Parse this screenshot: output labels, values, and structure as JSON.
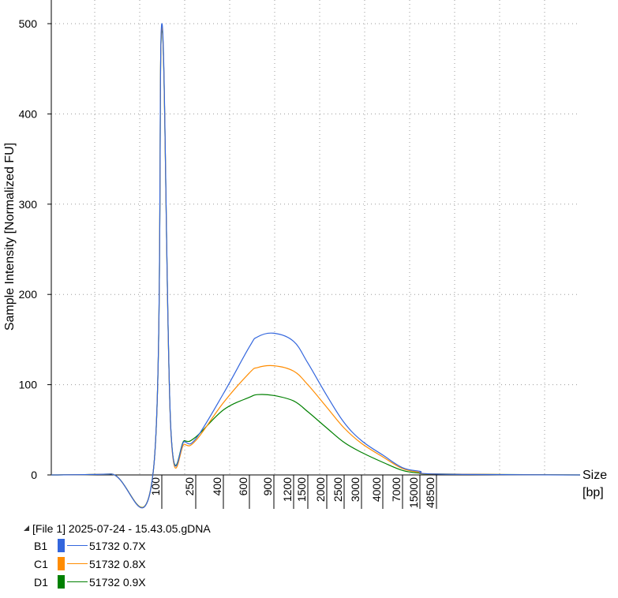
{
  "chart_data": {
    "type": "line",
    "ylabel": "Sample Intensity [Normalized FU]",
    "xlabel": "Size\n[bp]",
    "xlabel_lines": [
      "Size",
      "[bp]"
    ],
    "ylim": [
      0,
      500
    ],
    "yticks": [
      0,
      100,
      200,
      300,
      400,
      500
    ],
    "x_scale": "nonlinear (ladder-calibrated)",
    "xticks": [
      "100",
      "250",
      "400",
      "600",
      "900",
      "1200",
      "1500",
      "2000",
      "2500",
      "3000",
      "4000",
      "7000",
      "15000",
      "48500"
    ],
    "grid": true,
    "series": [
      {
        "name": "51732 0.7X",
        "well": "B1",
        "color": "#3366dd",
        "points": [
          [
            35,
            0
          ],
          [
            70,
            1
          ],
          [
            95,
            4
          ],
          [
            100,
            500
          ],
          [
            140,
            50
          ],
          [
            200,
            37
          ],
          [
            250,
            40
          ],
          [
            400,
            90
          ],
          [
            600,
            142
          ],
          [
            700,
            153
          ],
          [
            900,
            157
          ],
          [
            1200,
            148
          ],
          [
            1500,
            124
          ],
          [
            2000,
            88
          ],
          [
            2500,
            58
          ],
          [
            3000,
            38
          ],
          [
            4000,
            22
          ],
          [
            7000,
            8
          ],
          [
            15000,
            4
          ],
          [
            48500,
            1
          ],
          [
            60000,
            0
          ]
        ]
      },
      {
        "name": "51732 0.8X",
        "well": "C1",
        "color": "#ff8c00",
        "points": [
          [
            35,
            0
          ],
          [
            70,
            1
          ],
          [
            95,
            4
          ],
          [
            100,
            496
          ],
          [
            140,
            48
          ],
          [
            200,
            34
          ],
          [
            250,
            38
          ],
          [
            400,
            80
          ],
          [
            600,
            113
          ],
          [
            700,
            119
          ],
          [
            900,
            121
          ],
          [
            1200,
            115
          ],
          [
            1500,
            100
          ],
          [
            2000,
            75
          ],
          [
            2500,
            52
          ],
          [
            3000,
            35
          ],
          [
            4000,
            20
          ],
          [
            7000,
            7
          ],
          [
            15000,
            3
          ],
          [
            48500,
            1
          ],
          [
            60000,
            0
          ]
        ]
      },
      {
        "name": "51732 0.9X",
        "well": "D1",
        "color": "#008000",
        "points": [
          [
            35,
            0
          ],
          [
            70,
            1
          ],
          [
            95,
            4
          ],
          [
            100,
            494
          ],
          [
            140,
            50
          ],
          [
            200,
            38
          ],
          [
            250,
            42
          ],
          [
            400,
            72
          ],
          [
            600,
            86
          ],
          [
            700,
            89
          ],
          [
            900,
            88
          ],
          [
            1200,
            82
          ],
          [
            1500,
            70
          ],
          [
            2000,
            52
          ],
          [
            2500,
            36
          ],
          [
            3000,
            25
          ],
          [
            4000,
            14
          ],
          [
            7000,
            5
          ],
          [
            15000,
            2
          ],
          [
            48500,
            1
          ],
          [
            60000,
            0
          ]
        ]
      }
    ]
  },
  "legend": {
    "file_label": "[File 1] 2025-07-24 - 15.43.05.gDNA",
    "items": [
      {
        "well": "B1",
        "label": "51732 0.7X",
        "color": "#3366dd"
      },
      {
        "well": "C1",
        "label": "51732 0.8X",
        "color": "#ff8c00"
      },
      {
        "well": "D1",
        "label": "51732 0.9X",
        "color": "#008000"
      }
    ]
  }
}
